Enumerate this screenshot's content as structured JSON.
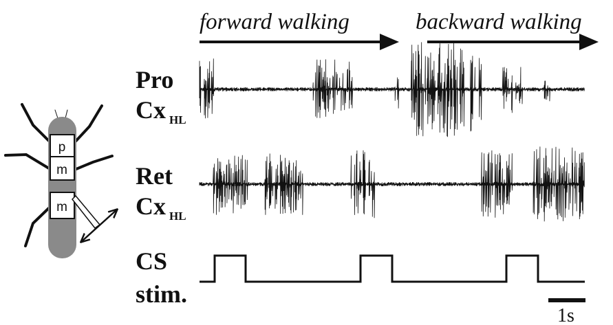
{
  "header": {
    "forward": "forward walking",
    "backward": "backward walking"
  },
  "traces": [
    {
      "name": "Pro",
      "sub_main": "Cx",
      "sub_index": "HL"
    },
    {
      "name": "Ret",
      "sub_main": "Cx",
      "sub_index": "HL"
    }
  ],
  "stimulus": {
    "line1": "CS",
    "line2": "stim."
  },
  "scale_bar": "1s",
  "segments": [
    "p",
    "m",
    "m"
  ]
}
